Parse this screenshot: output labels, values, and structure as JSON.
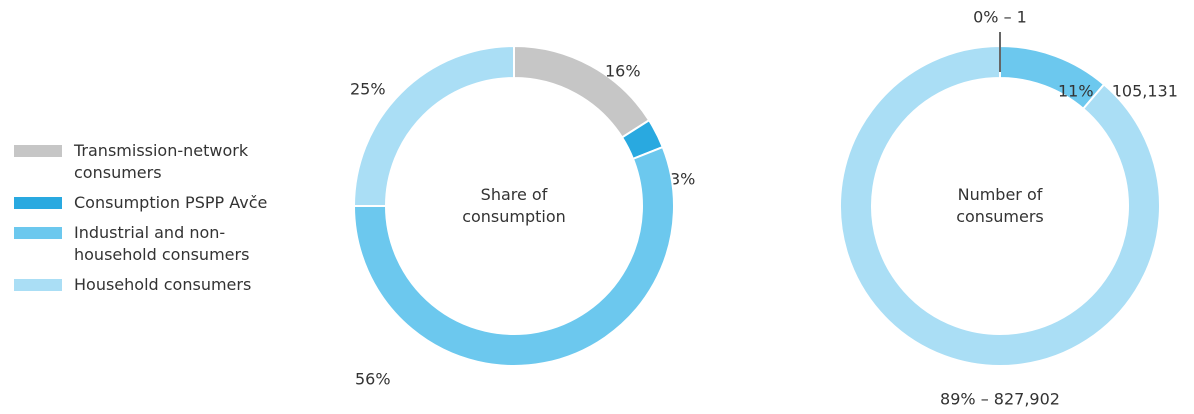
{
  "legend": [
    {
      "name": "Transmission-network consumers",
      "color": "#c6c6c6"
    },
    {
      "name": "Consumption PSPP Avče",
      "color": "#29a9e0"
    },
    {
      "name": "Industrial and non-household consumers",
      "color": "#6cc8ee"
    },
    {
      "name": "Household consumers",
      "color": "#aadef5"
    }
  ],
  "chart_data": [
    {
      "type": "pie",
      "center_label": "Share of consumption",
      "values": [
        16,
        3,
        56,
        25
      ],
      "value_labels": [
        "16%",
        "3%",
        "56%",
        "25%"
      ],
      "colors": [
        "#c6c6c6",
        "#29a9e0",
        "#6cc8ee",
        "#aadef5"
      ]
    },
    {
      "type": "pie",
      "center_label": "Number of consumers",
      "values": [
        1,
        105131,
        827902
      ],
      "value_labels": [
        "0% – 1",
        "11% – 105,131",
        "89% – 827,902"
      ],
      "colors": [
        "#c6c6c6",
        "#6cc8ee",
        "#aadef5"
      ]
    }
  ]
}
